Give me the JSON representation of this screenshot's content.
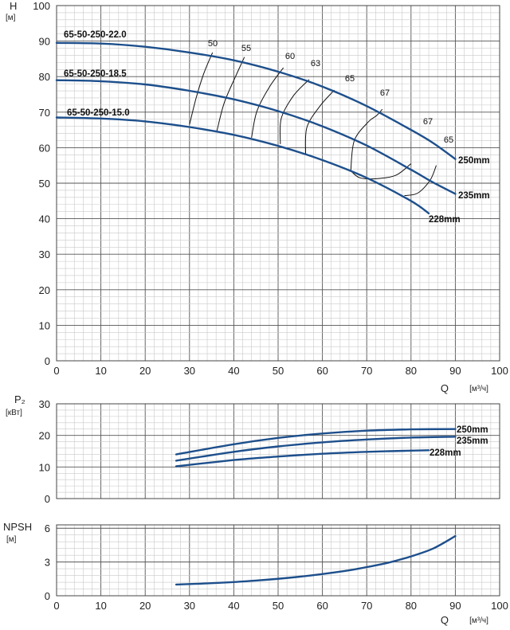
{
  "chart_data": [
    {
      "type": "line",
      "panel": "head",
      "ylabel": "H",
      "yunit": "[м]",
      "xlabel": "Q",
      "xunit": "[м³/ч]",
      "xlim": [
        0,
        100
      ],
      "ylim": [
        0,
        100
      ],
      "xticks": [
        "0",
        "10",
        "20",
        "30",
        "40",
        "50",
        "60",
        "70",
        "80",
        "90",
        "100"
      ],
      "yticks": [
        "0",
        "10",
        "20",
        "30",
        "40",
        "50",
        "60",
        "70",
        "80",
        "90",
        "100"
      ],
      "grid": true,
      "series": [
        {
          "name": "65-50-250-22.0",
          "end_label": "250mm",
          "x": [
            0,
            10,
            20,
            30,
            40,
            50,
            60,
            70,
            80,
            85,
            90
          ],
          "y": [
            89.5,
            89.3,
            88.4,
            86.8,
            84.6,
            81.4,
            77.2,
            71.7,
            65.0,
            61.3,
            56.8
          ]
        },
        {
          "name": "65-50-250-18.5",
          "end_label": "235mm",
          "x": [
            0,
            10,
            20,
            30,
            40,
            50,
            60,
            70,
            80,
            85,
            90
          ],
          "y": [
            79.0,
            78.7,
            77.8,
            76.0,
            73.6,
            70.3,
            66.0,
            60.6,
            53.8,
            50.2,
            47.0
          ]
        },
        {
          "name": "65-50-250-15.0",
          "end_label": "228mm",
          "x": [
            0,
            10,
            20,
            30,
            40,
            50,
            60,
            70,
            80,
            84
          ],
          "y": [
            68.5,
            68.2,
            67.4,
            65.8,
            63.6,
            60.5,
            56.5,
            51.5,
            45.0,
            41.5
          ]
        }
      ],
      "efficiency_labels": [
        "50",
        "55",
        "60",
        "63",
        "65",
        "67",
        "67",
        "65"
      ],
      "efficiency_curves": [
        {
          "label": "50",
          "x": [
            30,
            31.5,
            33.2,
            35.2
          ],
          "y": [
            66.5,
            74,
            80.8,
            86.8
          ]
        },
        {
          "label": "55",
          "x": [
            36.2,
            37.8,
            40.2,
            42.4
          ],
          "y": [
            64.8,
            72.5,
            79.5,
            85.5
          ]
        },
        {
          "label": "60",
          "x": [
            44,
            45.2,
            48,
            51.2
          ],
          "y": [
            62.8,
            70.2,
            77,
            82.5
          ]
        },
        {
          "label": "63",
          "x": [
            50.5,
            50.7,
            53.4,
            57
          ],
          "y": [
            61.0,
            68.2,
            74.5,
            79.2
          ]
        },
        {
          "label": "65",
          "x": [
            56.2,
            56.5,
            59.5,
            62.7
          ],
          "y": [
            58.0,
            65.7,
            71.8,
            76.2
          ]
        },
        {
          "label": "67",
          "x": [
            66.4,
            67.2,
            70.4,
            72.2,
            73.5
          ],
          "y": [
            53.5,
            62,
            67.3,
            69.0,
            70.8
          ]
        },
        {
          "label": "67",
          "x": [
            66.4,
            68.5,
            72.5,
            76.7,
            80
          ],
          "y": [
            53.5,
            51.5,
            51.3,
            52.3,
            55.5
          ]
        },
        {
          "label": "65",
          "x": [
            78.5,
            81.5,
            84.3,
            85.7
          ],
          "y": [
            46.5,
            47.2,
            50.8,
            55.0
          ]
        }
      ]
    },
    {
      "type": "line",
      "panel": "power",
      "ylabel": "P₂",
      "yunit": "[кВт]",
      "xlim": [
        0,
        100
      ],
      "ylim": [
        0,
        30
      ],
      "yticks": [
        "0",
        "10",
        "20",
        "30"
      ],
      "grid": true,
      "series": [
        {
          "name": "250mm",
          "x": [
            27,
            40,
            50,
            60,
            70,
            80,
            90
          ],
          "y": [
            14.0,
            17.2,
            19.2,
            20.6,
            21.5,
            21.9,
            22.0
          ]
        },
        {
          "name": "235mm",
          "x": [
            27,
            40,
            50,
            60,
            70,
            80,
            90
          ],
          "y": [
            12.0,
            14.8,
            16.5,
            17.8,
            18.7,
            19.3,
            19.6
          ]
        },
        {
          "name": "228mm",
          "x": [
            27,
            40,
            50,
            60,
            70,
            75,
            84
          ],
          "y": [
            10.2,
            12.2,
            13.3,
            14.2,
            14.8,
            15.0,
            15.3
          ]
        }
      ]
    },
    {
      "type": "line",
      "panel": "npsh",
      "ylabel": "NPSH",
      "yunit": "[м]",
      "xlabel": "Q",
      "xunit": "[м³/ч]",
      "xlim": [
        0,
        100
      ],
      "ylim": [
        0,
        6.3
      ],
      "xticks": [
        "0",
        "10",
        "20",
        "30",
        "40",
        "50",
        "60",
        "70",
        "80",
        "90",
        "100"
      ],
      "yticks": [
        "0",
        "3",
        "6"
      ],
      "grid": true,
      "series": [
        {
          "name": "",
          "x": [
            27,
            35,
            45,
            55,
            65,
            70,
            75,
            80,
            85,
            90
          ],
          "y": [
            1.0,
            1.12,
            1.35,
            1.7,
            2.2,
            2.55,
            2.95,
            3.5,
            4.2,
            5.3
          ]
        }
      ]
    }
  ],
  "colors": {
    "curve": "#1d4f8c",
    "grid_major": "#555555",
    "grid_minor": "#c9c9c9"
  }
}
